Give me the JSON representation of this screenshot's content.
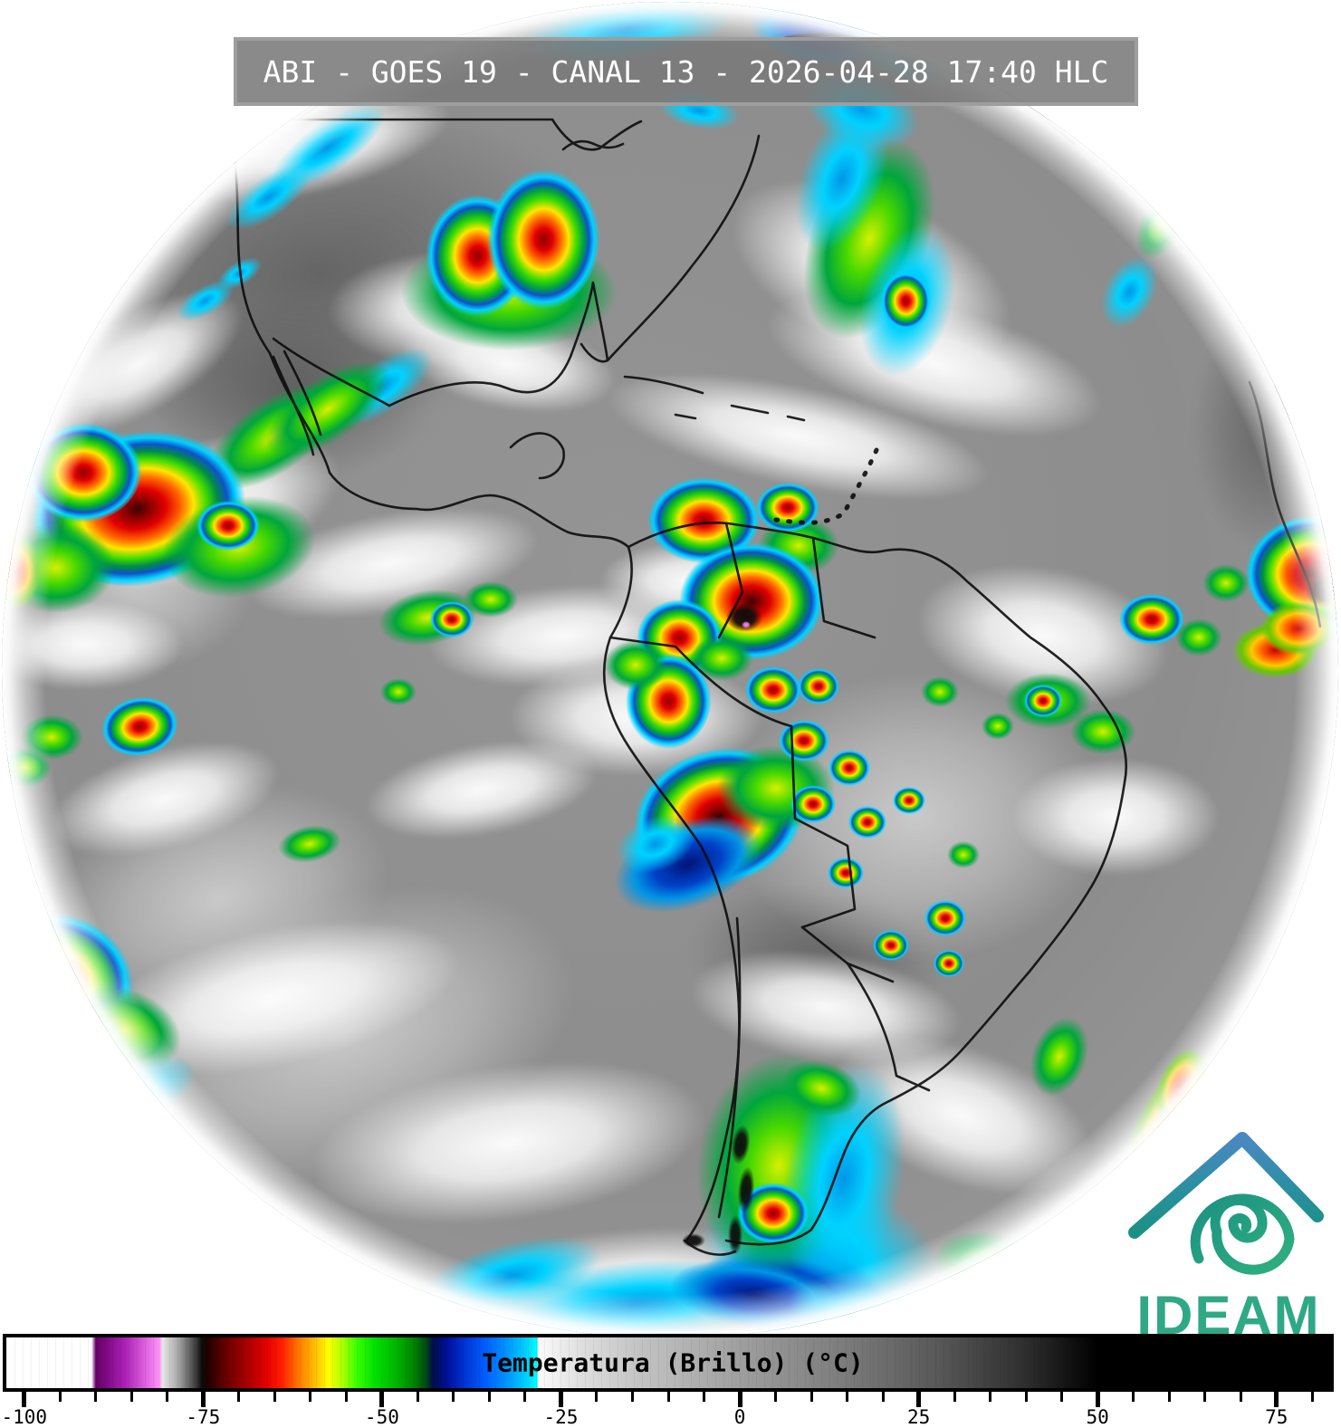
{
  "title_bar": {
    "text": "ABI - GOES 19 - CANAL 13 - 2026-04-28 17:40 HLC",
    "instrument": "ABI",
    "satellite": "GOES 19",
    "channel": "CANAL 13",
    "datetime": "2026-04-28 17:40",
    "time_label": "HLC"
  },
  "colorbar": {
    "label": "Temperatura (Brillo) (°C)",
    "unit": "°C",
    "range_min": -102.5,
    "range_max": 82.5,
    "first_tick": -100,
    "last_tick": 80,
    "major_tick_step": 25,
    "minor_tick_step": 5,
    "major_ticks": [
      -100,
      -75,
      -50,
      -25,
      0,
      25,
      50,
      75
    ],
    "gradient_stops": [
      [
        -102.5,
        "#ffffff"
      ],
      [
        -90.6,
        "#ffffff"
      ],
      [
        -90,
        "#640064"
      ],
      [
        -86,
        "#aa1eb4"
      ],
      [
        -82.5,
        "#e66ee6"
      ],
      [
        -81,
        "#ff96f5"
      ],
      [
        -80.8,
        "#ebebeb"
      ],
      [
        -78.5,
        "#a7a7a7"
      ],
      [
        -76,
        "#3c3c3c"
      ],
      [
        -75.2,
        "#0d0d0d"
      ],
      [
        -74.5,
        "#1e0000"
      ],
      [
        -72,
        "#640000"
      ],
      [
        -69,
        "#a50000"
      ],
      [
        -66,
        "#e60000"
      ],
      [
        -64,
        "#ff1e00"
      ],
      [
        -61.5,
        "#ff7d00"
      ],
      [
        -59,
        "#ffc800"
      ],
      [
        -57.5,
        "#ffff00"
      ],
      [
        -55.5,
        "#aaff00"
      ],
      [
        -53.5,
        "#37ff00"
      ],
      [
        -51,
        "#00e100"
      ],
      [
        -48,
        "#00b400"
      ],
      [
        -45.5,
        "#008200"
      ],
      [
        -43.8,
        "#004616"
      ],
      [
        -42.9,
        "#000e46"
      ],
      [
        -41,
        "#000e96"
      ],
      [
        -38.5,
        "#0032d2"
      ],
      [
        -35.5,
        "#005fff"
      ],
      [
        -32.5,
        "#0096ff"
      ],
      [
        -30,
        "#00ccff"
      ],
      [
        -28.3,
        "#00ffff"
      ],
      [
        -28.2,
        "#fbfbfb"
      ],
      [
        -22,
        "#dedede"
      ],
      [
        -14,
        "#c3c3c3"
      ],
      [
        0,
        "#9f9f9f"
      ],
      [
        14,
        "#7d7d7d"
      ],
      [
        28,
        "#575757"
      ],
      [
        40,
        "#2e2e2e"
      ],
      [
        50,
        "#000000"
      ],
      [
        82.5,
        "#000000"
      ]
    ]
  },
  "logo": {
    "text": "IDEAM",
    "text_color": "#2fa886",
    "gradient_top": "#4a88c2",
    "gradient_mid": "#1b9183",
    "gradient_bottom": "#2fb07e"
  },
  "disk": {
    "base_color": "#8f8f8f",
    "border_color": "#0c0c0c"
  },
  "features": [
    [
      "dk",
      350,
      300,
      620,
      360,
      -10
    ],
    [
      "dk",
      320,
      430,
      320,
      200,
      0
    ],
    [
      "dk",
      1400,
      470,
      170,
      280,
      0
    ],
    [
      "dk",
      900,
      1060,
      280,
      170,
      8
    ],
    [
      "lg",
      380,
      1140,
      520,
      300,
      -18
    ],
    [
      "lg",
      240,
      990,
      380,
      240,
      -15
    ],
    [
      "lg",
      1010,
      900,
      420,
      320,
      0
    ],
    [
      "lg",
      150,
      640,
      260,
      200,
      0
    ],
    [
      "wh",
      500,
      340,
      280,
      130,
      0
    ],
    [
      "wh",
      560,
      400,
      240,
      100,
      10
    ],
    [
      "wh",
      960,
      300,
      330,
      170,
      25
    ],
    [
      "wh",
      1030,
      400,
      380,
      130,
      15
    ],
    [
      "wh",
      880,
      480,
      430,
      110,
      12
    ],
    [
      "wh",
      150,
      400,
      260,
      110,
      -30
    ],
    [
      "wh",
      230,
      560,
      300,
      150,
      -20
    ],
    [
      "wh",
      430,
      620,
      330,
      110,
      -10
    ],
    [
      "wh",
      620,
      700,
      300,
      110,
      -5
    ],
    [
      "wh",
      700,
      790,
      280,
      130,
      0
    ],
    [
      "wh",
      1150,
      700,
      280,
      150,
      10
    ],
    [
      "wh",
      1230,
      900,
      230,
      130,
      0
    ],
    [
      "wh",
      300,
      1100,
      420,
      150,
      -12
    ],
    [
      "wh",
      560,
      1260,
      440,
      170,
      -8
    ],
    [
      "wh",
      910,
      1110,
      300,
      120,
      8
    ],
    [
      "wh",
      1060,
      1230,
      300,
      150,
      20
    ],
    [
      "wh",
      700,
      1420,
      420,
      130,
      -4
    ],
    [
      "wh",
      180,
      880,
      260,
      110,
      -15
    ],
    [
      "wh",
      90,
      710,
      220,
      100,
      0
    ],
    [
      "wh",
      350,
      160,
      300,
      100,
      -15
    ],
    [
      "wh",
      760,
      640,
      200,
      90,
      0
    ],
    [
      "wh",
      530,
      870,
      260,
      100,
      -10
    ],
    [
      "cy",
      690,
      30,
      240,
      70,
      -8
    ],
    [
      "bl",
      900,
      35,
      150,
      70,
      10
    ],
    [
      "cy",
      1000,
      65,
      110,
      45,
      15
    ],
    [
      "cy",
      950,
      120,
      130,
      80,
      20
    ],
    [
      "cy",
      770,
      120,
      90,
      40,
      10
    ],
    [
      "cy",
      360,
      160,
      150,
      55,
      -35
    ],
    [
      "cy",
      295,
      215,
      110,
      45,
      -35
    ],
    [
      "cy",
      225,
      330,
      70,
      32,
      -30
    ],
    [
      "cy",
      262,
      300,
      55,
      26,
      -30
    ],
    [
      "gr",
      1285,
      240,
      50,
      95,
      30
    ],
    [
      "cy",
      1245,
      320,
      55,
      85,
      28
    ],
    [
      "gr",
      560,
      320,
      240,
      130,
      0
    ],
    [
      "st",
      525,
      280,
      115,
      135,
      0
    ],
    [
      "st",
      598,
      262,
      125,
      155,
      0
    ],
    [
      "gr",
      958,
      262,
      130,
      230,
      20
    ],
    [
      "cy",
      928,
      195,
      90,
      170,
      20
    ],
    [
      "cy",
      1000,
      330,
      100,
      170,
      15
    ],
    [
      "st",
      998,
      330,
      55,
      65,
      0
    ],
    [
      "gr",
      300,
      480,
      170,
      80,
      -35
    ],
    [
      "cy",
      420,
      425,
      130,
      55,
      -35
    ],
    [
      "gr",
      360,
      450,
      160,
      70,
      -35
    ],
    [
      "sr",
      150,
      560,
      240,
      170,
      -10
    ],
    [
      "st",
      90,
      520,
      130,
      110,
      0
    ],
    [
      "gr",
      262,
      602,
      170,
      110,
      -10
    ],
    [
      "gr",
      60,
      625,
      130,
      100,
      0
    ],
    [
      "or",
      15,
      628,
      55,
      85,
      0
    ],
    [
      "st",
      250,
      578,
      70,
      55,
      0
    ],
    [
      "gr",
      470,
      680,
      110,
      60,
      -10
    ],
    [
      "st",
      497,
      682,
      48,
      40,
      0
    ],
    [
      "gr",
      540,
      660,
      60,
      40,
      0
    ],
    [
      "gr",
      438,
      762,
      40,
      30,
      0
    ],
    [
      "st",
      152,
      800,
      85,
      65,
      -10
    ],
    [
      "gr",
      55,
      812,
      70,
      50,
      0
    ],
    [
      "gr",
      25,
      845,
      60,
      45,
      0
    ],
    [
      "gr",
      340,
      930,
      70,
      40,
      -10
    ],
    [
      "st",
      62,
      1082,
      170,
      150,
      20
    ],
    [
      "gr",
      135,
      1135,
      130,
      90,
      20
    ],
    [
      "cy",
      140,
      1210,
      160,
      70,
      -25
    ],
    [
      "cy",
      80,
      1160,
      120,
      60,
      -30
    ],
    [
      "st",
      775,
      572,
      125,
      95,
      0
    ],
    [
      "gr",
      880,
      600,
      90,
      65,
      0
    ],
    [
      "st",
      868,
      558,
      70,
      55,
      0
    ],
    [
      "sr",
      828,
      662,
      160,
      130,
      0
    ],
    [
      "bk",
      820,
      680,
      40,
      32,
      0
    ],
    [
      "mg",
      822,
      688,
      10,
      8,
      0
    ],
    [
      "st",
      748,
      702,
      95,
      85,
      0
    ],
    [
      "gr",
      795,
      725,
      70,
      50,
      0
    ],
    [
      "st",
      736,
      772,
      95,
      105,
      0
    ],
    [
      "gr",
      700,
      732,
      70,
      55,
      0
    ],
    [
      "sr",
      792,
      900,
      190,
      150,
      -15
    ],
    [
      "bl",
      758,
      952,
      170,
      95,
      -20
    ],
    [
      "gr",
      855,
      868,
      130,
      95,
      0
    ],
    [
      "cy",
      722,
      930,
      90,
      60,
      -20
    ],
    [
      "st",
      852,
      760,
      62,
      52,
      0
    ],
    [
      "st",
      902,
      756,
      46,
      40,
      0
    ],
    [
      "st",
      886,
      816,
      56,
      46,
      0
    ],
    [
      "st",
      936,
      846,
      46,
      40,
      0
    ],
    [
      "st",
      896,
      886,
      50,
      42,
      0
    ],
    [
      "st",
      956,
      906,
      42,
      36,
      0
    ],
    [
      "st",
      1002,
      882,
      36,
      30,
      0
    ],
    [
      "st",
      1042,
      1012,
      46,
      40,
      0
    ],
    [
      "st",
      982,
      1042,
      40,
      34,
      0
    ],
    [
      "st",
      932,
      962,
      40,
      34,
      0
    ],
    [
      "gr",
      1062,
      942,
      36,
      30,
      0
    ],
    [
      "gr",
      1036,
      762,
      42,
      34,
      0
    ],
    [
      "gr",
      1100,
      800,
      36,
      30,
      0
    ],
    [
      "st",
      1046,
      1062,
      34,
      30,
      0
    ],
    [
      "gr",
      1155,
      772,
      95,
      62,
      0
    ],
    [
      "st",
      1150,
      772,
      42,
      36,
      0
    ],
    [
      "gr",
      1216,
      806,
      72,
      50,
      0
    ],
    [
      "st",
      1270,
      682,
      72,
      56,
      0
    ],
    [
      "gr",
      1322,
      702,
      52,
      42,
      0
    ],
    [
      "or",
      1406,
      716,
      95,
      62,
      0
    ],
    [
      "sr",
      1448,
      632,
      150,
      130,
      0
    ],
    [
      "bk",
      1462,
      650,
      44,
      40,
      0
    ],
    [
      "mg",
      1477,
      638,
      18,
      26,
      0
    ],
    [
      "or",
      1432,
      692,
      85,
      60,
      0
    ],
    [
      "gr",
      1352,
      642,
      52,
      42,
      0
    ],
    [
      "cy",
      905,
      1385,
      270,
      170,
      15
    ],
    [
      "bl",
      875,
      1425,
      210,
      105,
      10
    ],
    [
      "gr",
      858,
      1285,
      180,
      250,
      8
    ],
    [
      "cy",
      930,
      1300,
      130,
      260,
      10
    ],
    [
      "st",
      852,
      1338,
      80,
      68,
      0
    ],
    [
      "gr",
      905,
      1200,
      90,
      60,
      15
    ],
    [
      "bk",
      816,
      1262,
      20,
      44,
      8
    ],
    [
      "bk",
      822,
      1312,
      18,
      52,
      5
    ],
    [
      "bk",
      810,
      1362,
      16,
      44,
      0
    ],
    [
      "bk",
      764,
      1368,
      26,
      16,
      0
    ],
    [
      "cy",
      700,
      1438,
      340,
      95,
      -5
    ],
    [
      "bl",
      832,
      1428,
      190,
      75,
      8
    ],
    [
      "cy",
      560,
      1408,
      210,
      75,
      -15
    ],
    [
      "cy",
      952,
      1448,
      170,
      65,
      10
    ],
    [
      "or",
      1288,
      1248,
      75,
      190,
      25
    ],
    [
      "or",
      1302,
      1198,
      50,
      90,
      22
    ],
    [
      "gr",
      1252,
      1332,
      95,
      130,
      25
    ],
    [
      "cy",
      1212,
      1392,
      130,
      95,
      25
    ],
    [
      "gr",
      1102,
      1402,
      150,
      85,
      15
    ],
    [
      "gr",
      1168,
      1165,
      60,
      90,
      20
    ]
  ]
}
